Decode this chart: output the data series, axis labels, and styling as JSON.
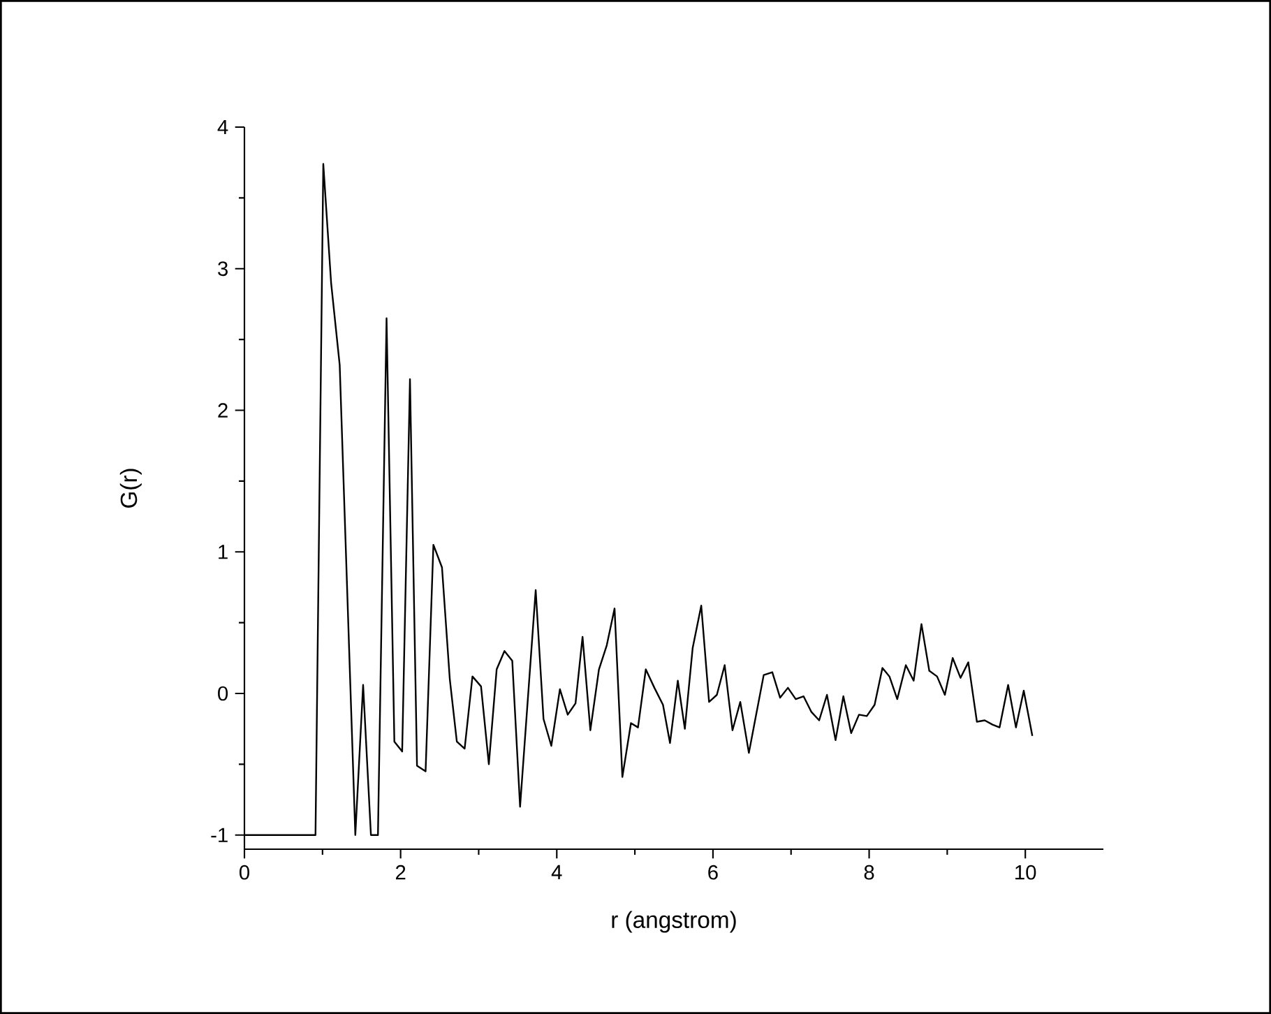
{
  "chart_data": {
    "type": "line",
    "xlabel": "r (angstrom)",
    "ylabel": "G(r)",
    "color": "#000000",
    "x": [
      0,
      0.91,
      1.01,
      1.11,
      1.22,
      1.42,
      1.52,
      1.62,
      1.71,
      1.82,
      1.92,
      2.02,
      2.12,
      2.21,
      2.32,
      2.42,
      2.53,
      2.63,
      2.72,
      2.82,
      2.92,
      3.03,
      3.13,
      3.23,
      3.33,
      3.43,
      3.53,
      3.73,
      3.83,
      3.93,
      4.04,
      4.14,
      4.24,
      4.33,
      4.43,
      4.54,
      4.64,
      4.74,
      4.84,
      4.95,
      5.04,
      5.14,
      5.25,
      5.36,
      5.45,
      5.55,
      5.64,
      5.74,
      5.85,
      5.95,
      6.05,
      6.15,
      6.25,
      6.35,
      6.46,
      6.56,
      6.65,
      6.76,
      6.86,
      6.96,
      7.06,
      7.16,
      7.26,
      7.36,
      7.46,
      7.57,
      7.67,
      7.77,
      7.87,
      7.97,
      8.07,
      8.17,
      8.26,
      8.36,
      8.47,
      8.57,
      8.67,
      8.77,
      8.87,
      8.97,
      9.07,
      9.17,
      9.27,
      9.38,
      9.48,
      9.58,
      9.67,
      9.78,
      9.88,
      9.98,
      10.09
    ],
    "values": [
      -1,
      -1,
      3.74,
      2.9,
      2.32,
      -1,
      0.06,
      -1,
      -1,
      2.65,
      -0.34,
      -0.41,
      2.22,
      -0.51,
      -0.55,
      1.05,
      0.89,
      0.1,
      -0.34,
      -0.39,
      0.12,
      0.05,
      -0.5,
      0.17,
      0.3,
      0.23,
      -0.8,
      0.73,
      -0.18,
      -0.37,
      0.03,
      -0.15,
      -0.07,
      0.4,
      -0.26,
      0.17,
      0.34,
      0.6,
      -0.59,
      -0.21,
      -0.24,
      0.17,
      0.04,
      -0.08,
      -0.35,
      0.09,
      -0.25,
      0.32,
      0.62,
      -0.06,
      -0.01,
      0.2,
      -0.26,
      -0.06,
      -0.42,
      -0.13,
      0.13,
      0.15,
      -0.03,
      0.04,
      -0.04,
      -0.02,
      -0.13,
      -0.19,
      -0.01,
      -0.33,
      -0.02,
      -0.28,
      -0.15,
      -0.16,
      -0.08,
      0.18,
      0.12,
      -0.04,
      0.2,
      0.09,
      0.49,
      0.16,
      0.12,
      -0.01,
      0.25,
      0.11,
      0.22,
      -0.2,
      -0.19,
      -0.22,
      -0.24,
      0.06,
      -0.24,
      0.02,
      -0.3
    ],
    "xlim": [
      0,
      11
    ],
    "ylim": [
      -1.1,
      4
    ],
    "xticks": [
      0,
      2,
      4,
      6,
      8,
      10
    ],
    "yticks": [
      -1,
      0,
      1,
      2,
      3,
      4
    ]
  }
}
